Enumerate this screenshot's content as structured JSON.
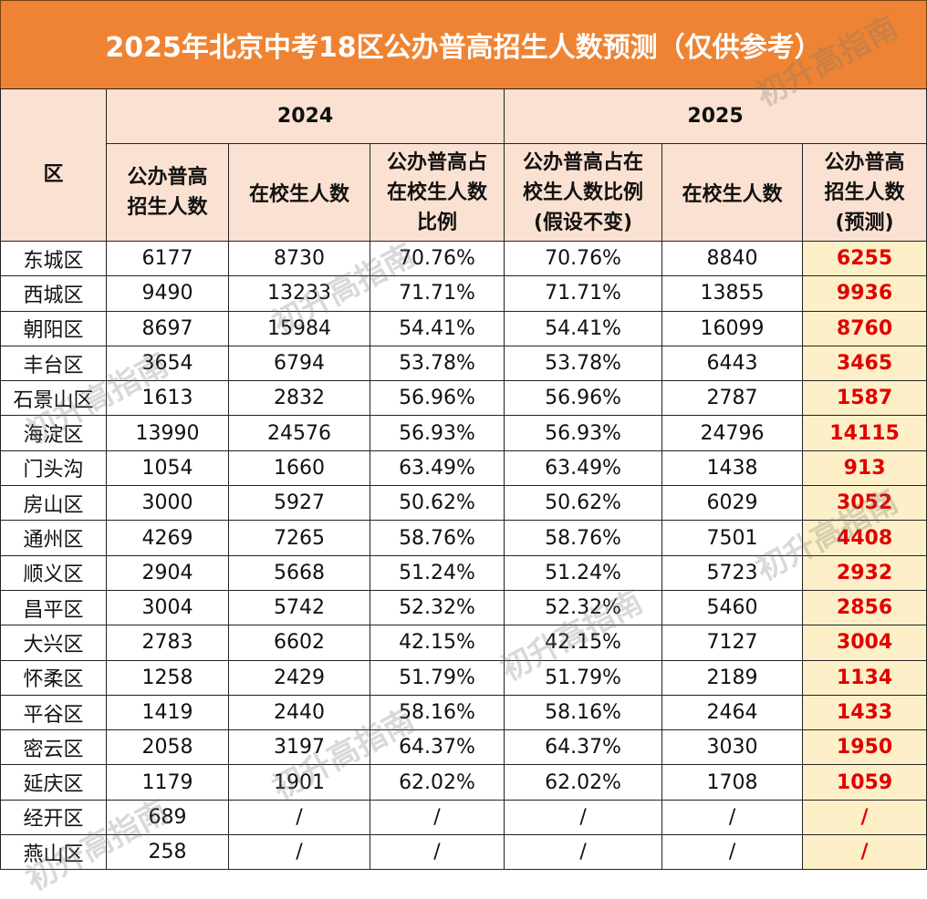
{
  "title": "2025年北京中考18区公办普高招生人数预测（仅供参考）",
  "headers": {
    "area": "区",
    "year_2024": "2024",
    "year_2025": "2025",
    "c1": [
      "公办普高",
      "招生人数"
    ],
    "c2": "在校生人数",
    "c3": [
      "公办普高占",
      "在校生人数",
      "比例"
    ],
    "c4": [
      "公办普高占在",
      "校生人数比例",
      "(假设不变)"
    ],
    "c5": "在校生人数",
    "c6": [
      "公办普高",
      "招生人数",
      "(预测)"
    ]
  },
  "rows": [
    {
      "area": "东城区",
      "enroll_2024": "6177",
      "students_2024": "8730",
      "ratio_2024": "70.76%",
      "ratio_2025": "70.76%",
      "students_2025": "8840",
      "pred_2025": "6255"
    },
    {
      "area": "西城区",
      "enroll_2024": "9490",
      "students_2024": "13233",
      "ratio_2024": "71.71%",
      "ratio_2025": "71.71%",
      "students_2025": "13855",
      "pred_2025": "9936"
    },
    {
      "area": "朝阳区",
      "enroll_2024": "8697",
      "students_2024": "15984",
      "ratio_2024": "54.41%",
      "ratio_2025": "54.41%",
      "students_2025": "16099",
      "pred_2025": "8760"
    },
    {
      "area": "丰台区",
      "enroll_2024": "3654",
      "students_2024": "6794",
      "ratio_2024": "53.78%",
      "ratio_2025": "53.78%",
      "students_2025": "6443",
      "pred_2025": "3465"
    },
    {
      "area": "石景山区",
      "enroll_2024": "1613",
      "students_2024": "2832",
      "ratio_2024": "56.96%",
      "ratio_2025": "56.96%",
      "students_2025": "2787",
      "pred_2025": "1587"
    },
    {
      "area": "海淀区",
      "enroll_2024": "13990",
      "students_2024": "24576",
      "ratio_2024": "56.93%",
      "ratio_2025": "56.93%",
      "students_2025": "24796",
      "pred_2025": "14115"
    },
    {
      "area": "门头沟",
      "enroll_2024": "1054",
      "students_2024": "1660",
      "ratio_2024": "63.49%",
      "ratio_2025": "63.49%",
      "students_2025": "1438",
      "pred_2025": "913"
    },
    {
      "area": "房山区",
      "enroll_2024": "3000",
      "students_2024": "5927",
      "ratio_2024": "50.62%",
      "ratio_2025": "50.62%",
      "students_2025": "6029",
      "pred_2025": "3052"
    },
    {
      "area": "通州区",
      "enroll_2024": "4269",
      "students_2024": "7265",
      "ratio_2024": "58.76%",
      "ratio_2025": "58.76%",
      "students_2025": "7501",
      "pred_2025": "4408"
    },
    {
      "area": "顺义区",
      "enroll_2024": "2904",
      "students_2024": "5668",
      "ratio_2024": "51.24%",
      "ratio_2025": "51.24%",
      "students_2025": "5723",
      "pred_2025": "2932"
    },
    {
      "area": "昌平区",
      "enroll_2024": "3004",
      "students_2024": "5742",
      "ratio_2024": "52.32%",
      "ratio_2025": "52.32%",
      "students_2025": "5460",
      "pred_2025": "2856"
    },
    {
      "area": "大兴区",
      "enroll_2024": "2783",
      "students_2024": "6602",
      "ratio_2024": "42.15%",
      "ratio_2025": "42.15%",
      "students_2025": "7127",
      "pred_2025": "3004"
    },
    {
      "area": "怀柔区",
      "enroll_2024": "1258",
      "students_2024": "2429",
      "ratio_2024": "51.79%",
      "ratio_2025": "51.79%",
      "students_2025": "2189",
      "pred_2025": "1134"
    },
    {
      "area": "平谷区",
      "enroll_2024": "1419",
      "students_2024": "2440",
      "ratio_2024": "58.16%",
      "ratio_2025": "58.16%",
      "students_2025": "2464",
      "pred_2025": "1433"
    },
    {
      "area": "密云区",
      "enroll_2024": "2058",
      "students_2024": "3197",
      "ratio_2024": "64.37%",
      "ratio_2025": "64.37%",
      "students_2025": "3030",
      "pred_2025": "1950"
    },
    {
      "area": "延庆区",
      "enroll_2024": "1179",
      "students_2024": "1901",
      "ratio_2024": "62.02%",
      "ratio_2025": "62.02%",
      "students_2025": "1708",
      "pred_2025": "1059"
    },
    {
      "area": "经开区",
      "enroll_2024": "689",
      "students_2024": "/",
      "ratio_2024": "/",
      "ratio_2025": "/",
      "students_2025": "/",
      "pred_2025": "/"
    },
    {
      "area": "燕山区",
      "enroll_2024": "258",
      "students_2024": "/",
      "ratio_2024": "/",
      "ratio_2025": "/",
      "students_2025": "/",
      "pred_2025": "/"
    }
  ],
  "watermark": "初升高指南",
  "colors": {
    "title_bg": "#ee8433",
    "header_bg": "#fbe1d2",
    "pred_bg": "#fdf0c8",
    "pred_text": "#e00000"
  }
}
